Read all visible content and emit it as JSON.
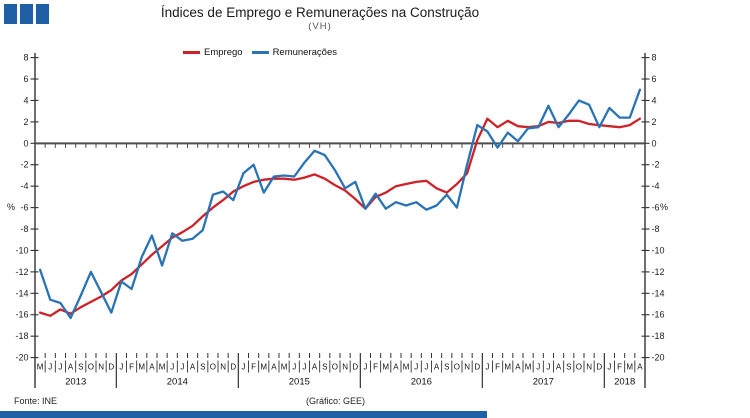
{
  "header": {
    "title": "Índices de Emprego e Remunerações na Construção",
    "subtitle": "(VH)"
  },
  "footer": {
    "source": "Fonte: INE",
    "credit": "(Gráfico: GEE)"
  },
  "colors": {
    "accent": "#1e5fa5",
    "emprego": "#cd2328",
    "remuneracoes": "#2a73b4",
    "zero_line": "#4d4d4d",
    "axis": "#333333"
  },
  "chart_data": {
    "type": "line",
    "title": "Índices de Emprego e Remunerações na Construção",
    "subtitle": "(VH)",
    "ylabel_left": "%",
    "ylabel_right": "%",
    "ylim": [
      -20,
      8
    ],
    "ytick_step": 2,
    "grid": false,
    "zero_line": true,
    "legend_position": "top-center",
    "x_axis": {
      "unit": "month",
      "month_letters": [
        "M",
        "J",
        "J",
        "A",
        "S",
        "O",
        "N",
        "D",
        "J",
        "F",
        "M",
        "A",
        "M",
        "J",
        "J",
        "A",
        "S",
        "O",
        "N",
        "D",
        "J",
        "F",
        "M",
        "A",
        "M",
        "J",
        "J",
        "A",
        "S",
        "O",
        "N",
        "D",
        "J",
        "F",
        "M",
        "A",
        "M",
        "J",
        "J",
        "A",
        "S",
        "O",
        "N",
        "D",
        "J",
        "F",
        "M",
        "A",
        "M",
        "J",
        "J",
        "A",
        "S",
        "O",
        "N",
        "D",
        "J",
        "F",
        "M",
        "A"
      ],
      "years": [
        {
          "label": "2013",
          "months": 8
        },
        {
          "label": "2014",
          "months": 12
        },
        {
          "label": "2015",
          "months": 12
        },
        {
          "label": "2016",
          "months": 12
        },
        {
          "label": "2017",
          "months": 12
        },
        {
          "label": "2018",
          "months": 4
        }
      ]
    },
    "series": [
      {
        "name": "Emprego",
        "color": "#cd2328",
        "values": [
          -15.8,
          -16.1,
          -15.5,
          -15.9,
          -15.3,
          -14.8,
          -14.3,
          -13.7,
          -12.8,
          -12.2,
          -11.3,
          -10.4,
          -9.6,
          -8.8,
          -8.3,
          -7.7,
          -6.8,
          -6.0,
          -5.3,
          -4.5,
          -4.0,
          -3.6,
          -3.4,
          -3.3,
          -3.3,
          -3.4,
          -3.2,
          -2.9,
          -3.3,
          -3.9,
          -4.4,
          -5.2,
          -6.1,
          -5.0,
          -4.6,
          -4.0,
          -3.8,
          -3.6,
          -3.5,
          -4.2,
          -4.6,
          -3.8,
          -2.8,
          0.3,
          2.3,
          1.5,
          2.1,
          1.6,
          1.5,
          1.6,
          2.0,
          1.9,
          2.1,
          2.1,
          1.8,
          1.7,
          1.6,
          1.5,
          1.7,
          2.3
        ]
      },
      {
        "name": "Remunerações",
        "color": "#2a73b4",
        "values": [
          -11.8,
          -14.6,
          -14.9,
          -16.3,
          -14.2,
          -12.0,
          -13.9,
          -15.8,
          -12.9,
          -13.6,
          -10.6,
          -8.6,
          -11.4,
          -8.4,
          -9.1,
          -8.9,
          -8.1,
          -4.8,
          -4.5,
          -5.3,
          -2.8,
          -2.0,
          -4.6,
          -3.1,
          -3.0,
          -3.1,
          -1.8,
          -0.7,
          -1.1,
          -2.5,
          -4.2,
          -3.6,
          -6.1,
          -4.7,
          -6.1,
          -5.5,
          -5.8,
          -5.5,
          -6.2,
          -5.8,
          -4.8,
          -6.0,
          -2.0,
          1.7,
          1.1,
          -0.4,
          1.0,
          0.2,
          1.4,
          1.5,
          3.5,
          1.5,
          2.7,
          4.0,
          3.6,
          1.5,
          3.3,
          2.4,
          2.4,
          5.0
        ]
      }
    ]
  }
}
